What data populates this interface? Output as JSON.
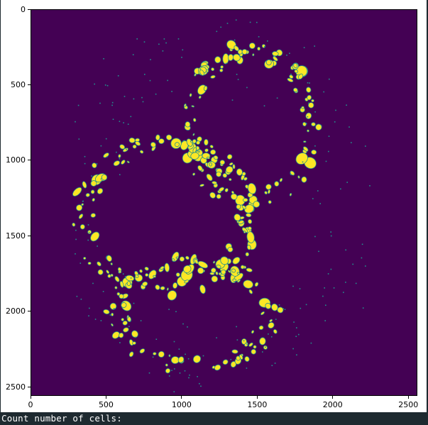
{
  "figure": {
    "xticks": [
      "0",
      "500",
      "1000",
      "1500",
      "2000",
      "2500"
    ],
    "yticks": [
      "0",
      "500",
      "1000",
      "1500",
      "2000",
      "2500"
    ],
    "background_color": "#440154",
    "foreground_color": "#fde725",
    "edge_color": "#21918c",
    "colormap": "viridis"
  },
  "output": {
    "text": "Count number of cells:"
  }
}
